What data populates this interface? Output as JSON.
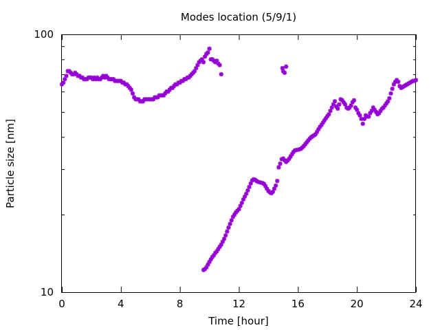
{
  "chart_data": {
    "type": "scatter",
    "title": "Modes location (5/9/1)",
    "xlabel": "Time [hour]",
    "ylabel": "Particle size [nm]",
    "xlim": [
      0,
      24
    ],
    "ylim": [
      10,
      100
    ],
    "yscale": "log",
    "grid": false,
    "legend": "none",
    "marker_color": "#9400D3",
    "x_ticks": [
      0,
      4,
      8,
      12,
      16,
      20,
      24
    ],
    "x_tick_labels": [
      "0",
      "4",
      "8",
      "12",
      "16",
      "20",
      "24"
    ],
    "y_ticks": [
      10,
      100
    ],
    "y_tick_labels": [
      "10",
      "100"
    ],
    "series": [
      {
        "marker": "star",
        "x": [
          0.0,
          0.1,
          0.2,
          0.3,
          0.4,
          0.5,
          0.6,
          0.7,
          0.8,
          0.9,
          1.0,
          1.1,
          1.2,
          1.3,
          1.4,
          1.5,
          1.6,
          1.7,
          1.8,
          1.9,
          2.0,
          2.1,
          2.2,
          2.3,
          2.4,
          2.5,
          2.6,
          2.7,
          2.8,
          2.9,
          3.0,
          3.1,
          3.2,
          3.3,
          3.4,
          3.5,
          3.6,
          3.7,
          3.8,
          3.9,
          4.0,
          4.1,
          4.2,
          4.3,
          4.4,
          4.5,
          4.6,
          4.7,
          4.8,
          4.9,
          5.0,
          5.1,
          5.2,
          5.3,
          5.4,
          5.5,
          5.6,
          5.7,
          5.8,
          5.9,
          6.0,
          6.1,
          6.2,
          6.3,
          6.4,
          6.5,
          6.6,
          6.7,
          6.8,
          6.9,
          7.0,
          7.1,
          7.2,
          7.3,
          7.4,
          7.5,
          7.6,
          7.7,
          7.8,
          7.9,
          8.0,
          8.1,
          8.2,
          8.3,
          8.4,
          8.5,
          8.6,
          8.7,
          8.8,
          8.9,
          9.0,
          9.1,
          9.2,
          9.3,
          9.4,
          9.5,
          9.6,
          9.7,
          9.8,
          9.9,
          10.0,
          10.1,
          10.2,
          10.3,
          10.4,
          10.5,
          10.6,
          10.7,
          10.8,
          14.95,
          15.0,
          15.1,
          15.2
        ],
        "y": [
          64,
          65,
          67,
          69,
          72,
          72,
          71,
          70,
          70,
          71,
          70,
          69,
          69,
          68,
          68,
          67,
          67,
          67,
          68,
          68,
          68,
          67,
          68,
          67,
          68,
          67,
          67,
          68,
          69,
          68,
          69,
          68,
          67,
          67,
          67,
          67,
          66,
          66,
          66,
          66,
          66,
          65,
          65,
          64,
          64,
          63,
          62,
          61,
          59,
          57,
          56,
          56,
          56,
          55,
          55,
          55,
          56,
          56,
          56,
          56,
          56,
          56,
          56,
          57,
          57,
          57,
          58,
          58,
          58,
          58,
          59,
          60,
          60,
          61,
          62,
          62,
          63,
          64,
          64,
          65,
          65,
          66,
          66,
          67,
          67,
          68,
          68,
          69,
          70,
          71,
          72,
          74,
          76,
          78,
          79,
          80,
          78,
          82,
          84,
          85,
          88,
          80,
          80,
          79,
          78,
          79,
          77,
          76,
          70,
          74,
          72,
          71,
          75
        ]
      },
      {
        "marker": "star",
        "x": [
          9.6,
          9.7,
          9.8,
          9.9,
          10.0,
          10.1,
          10.2,
          10.3,
          10.4,
          10.5,
          10.6,
          10.7,
          10.8,
          10.9,
          11.0,
          11.1,
          11.2,
          11.3,
          11.4,
          11.5,
          11.6,
          11.7,
          11.8,
          11.9,
          12.0,
          12.1,
          12.2,
          12.3,
          12.4,
          12.5,
          12.6,
          12.7,
          12.8,
          12.9,
          13.0,
          13.1,
          13.2,
          13.3,
          13.4,
          13.5,
          13.6,
          13.7,
          13.8,
          13.9,
          14.0,
          14.1,
          14.2,
          14.3,
          14.4,
          14.5,
          14.6,
          14.7,
          14.8,
          14.9,
          15.0,
          15.1,
          15.2,
          15.3,
          15.4,
          15.5,
          15.6,
          15.7,
          15.8,
          15.9,
          16.0,
          16.1,
          16.2,
          16.3,
          16.4,
          16.5,
          16.6,
          16.7,
          16.8,
          16.9,
          17.0,
          17.1,
          17.2,
          17.3,
          17.4,
          17.5,
          17.6,
          17.7,
          17.8,
          17.9,
          18.0,
          18.1,
          18.2,
          18.3,
          18.4,
          18.5,
          18.6,
          18.7,
          18.8,
          18.9,
          19.0,
          19.1,
          19.2,
          19.3,
          19.4,
          19.5,
          19.6,
          19.7,
          19.8,
          19.9,
          20.0,
          20.1,
          20.2,
          20.3,
          20.4,
          20.5,
          20.6,
          20.7,
          20.8,
          20.9,
          21.0,
          21.1,
          21.2,
          21.3,
          21.4,
          21.5,
          21.6,
          21.7,
          21.8,
          21.9,
          22.0,
          22.1,
          22.2,
          22.3,
          22.4,
          22.5,
          22.6,
          22.7,
          22.8,
          22.9,
          23.0,
          23.1,
          23.2,
          23.3,
          23.4,
          23.5,
          23.6,
          23.7,
          23.8,
          23.9,
          24.0
        ],
        "y": [
          12.2,
          12.3,
          12.5,
          12.8,
          13.1,
          13.4,
          13.7,
          13.9,
          14.2,
          14.4,
          14.7,
          15.0,
          15.3,
          15.7,
          16.1,
          16.6,
          17.2,
          17.8,
          18.4,
          19.0,
          19.6,
          20.0,
          20.4,
          20.7,
          21.0,
          21.6,
          22.2,
          22.9,
          23.5,
          24.1,
          24.8,
          25.6,
          26.4,
          27.1,
          27.4,
          27.3,
          27.0,
          26.8,
          26.7,
          26.6,
          26.5,
          26.3,
          25.8,
          25.2,
          24.7,
          24.4,
          24.2,
          24.5,
          25.2,
          25.9,
          27.0,
          30.5,
          31.5,
          32.8,
          33.0,
          32.5,
          32.0,
          32.4,
          32.9,
          33.6,
          34.3,
          35.0,
          35.5,
          35.6,
          35.7,
          35.8,
          36.0,
          36.4,
          36.9,
          37.5,
          38.1,
          38.8,
          39.4,
          39.9,
          40.3,
          40.6,
          41.0,
          41.9,
          42.9,
          43.8,
          44.6,
          45.5,
          46.4,
          47.3,
          48.2,
          49.0,
          50.5,
          52.0,
          53.5,
          55.0,
          52.5,
          51.5,
          53.5,
          56.0,
          55.5,
          54.5,
          53.5,
          52.0,
          51.5,
          52.0,
          53.0,
          54.5,
          55.5,
          52.0,
          51.0,
          49.5,
          48.5,
          47.0,
          45.0,
          47.0,
          48.5,
          48.0,
          48.0,
          49.5,
          50.5,
          52.0,
          51.0,
          50.0,
          49.0,
          49.5,
          50.5,
          51.5,
          52.0,
          53.0,
          54.0,
          55.0,
          56.5,
          59.0,
          61.5,
          64.0,
          65.5,
          66.5,
          65.5,
          63.0,
          62.0,
          62.5,
          63.0,
          63.5,
          64.0,
          64.5,
          65.0,
          65.5,
          66.0,
          66.0,
          66.5
        ]
      }
    ]
  }
}
